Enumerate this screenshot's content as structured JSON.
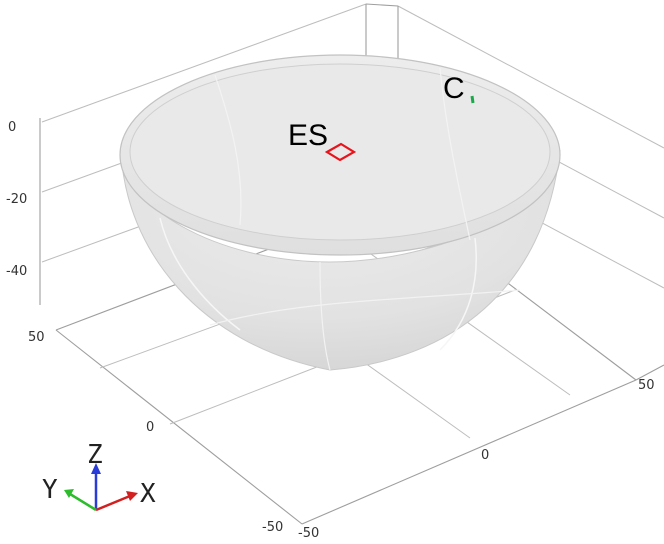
{
  "ticks": {
    "z": [
      "0",
      "-20",
      "-40"
    ],
    "y": [
      "50",
      "0",
      "-50"
    ],
    "x": [
      "-50",
      "0",
      "50"
    ]
  },
  "labels": {
    "es": "ES",
    "c": "C"
  },
  "triad": {
    "x": "X",
    "y": "Y",
    "z": "Z"
  },
  "colors": {
    "background": "#ffffff",
    "bowl": "#e3e3e3",
    "es_marker": "#e8141c",
    "c_marker": "#1aa84a",
    "x_axis": "#d22020",
    "y_axis": "#2cbc2c",
    "z_axis": "#2a3cd8"
  }
}
